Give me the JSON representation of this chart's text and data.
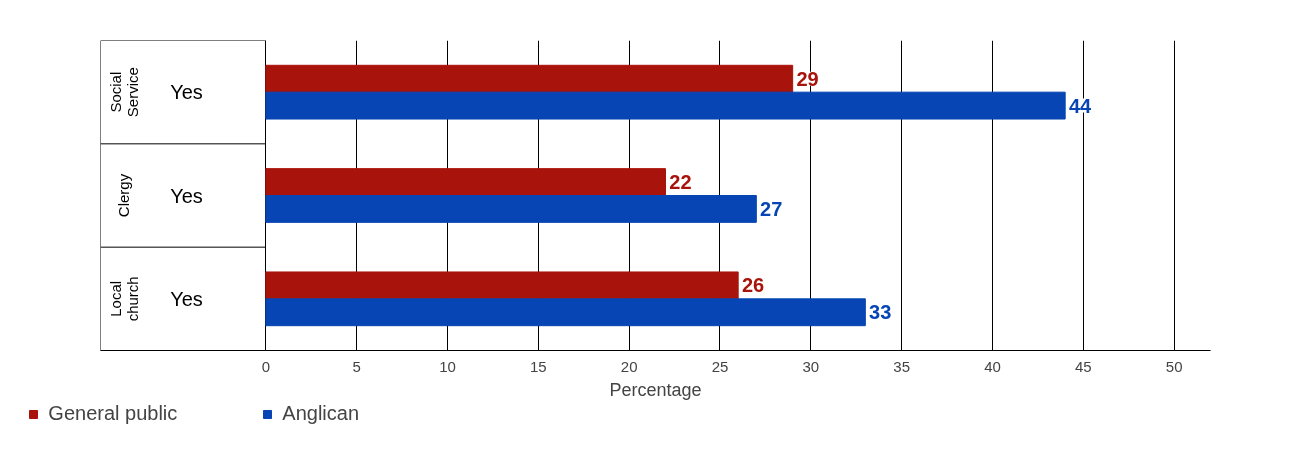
{
  "chart_data": {
    "type": "bar",
    "orientation": "horizontal",
    "categories": [
      "Yes",
      "Yes",
      "Yes"
    ],
    "annotations": [
      "Social Service",
      "Clergy",
      "Local church"
    ],
    "xlabel": "Percentage",
    "xlim": [
      0,
      52
    ],
    "xticks": [
      0,
      5,
      10,
      15,
      20,
      25,
      30,
      35,
      40,
      45,
      50
    ],
    "grid": "x",
    "legend": "bottom",
    "data_labels": true,
    "series": [
      {
        "name": "General public",
        "color": "#a8130b",
        "values": [
          29,
          22,
          26
        ]
      },
      {
        "name": "Anglican",
        "color": "#0645b3",
        "values": [
          44,
          27,
          33
        ]
      }
    ]
  }
}
